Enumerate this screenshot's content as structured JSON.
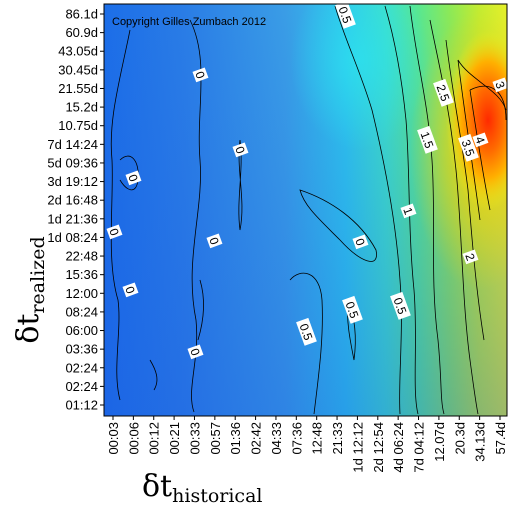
{
  "chart_data": {
    "type": "heatmap",
    "title": "",
    "copyright": "Copyright Gilles Zumbach 2012",
    "xlabel": {
      "main": "δt",
      "sub": "historical"
    },
    "ylabel": {
      "main": "δt",
      "sub": "realized"
    },
    "x_ticks": [
      "00:03",
      "00:06",
      "00:12",
      "00:21",
      "00:33",
      "00:57",
      "01:36",
      "02:42",
      "04:33",
      "07:36",
      "12:48",
      "21:33",
      "1d 12:12",
      "2d 12:54",
      "4d 06:24",
      "7d 04:12",
      "12.07d",
      "20.3d",
      "34.13d",
      "57.4d"
    ],
    "y_ticks": [
      "86.1d",
      "60.9d",
      "43.05d",
      "30.45d",
      "21.55d",
      "15.2d",
      "10.75d",
      "7d 14:24",
      "5d 09:36",
      "3d 19:12",
      "2d 16:48",
      "1d 21:36",
      "1d 08:24",
      "22:48",
      "15:36",
      "12:00",
      "08:24",
      "06:00",
      "03:36",
      "02:24",
      "02:24",
      "01:12"
    ],
    "contour_labels": [
      "0",
      "0",
      "0",
      "0",
      "0",
      "0",
      "0",
      "0",
      "0.5",
      "0.5",
      "0.5",
      "0.5",
      "1",
      "1.5",
      "2",
      "2.5",
      "3",
      "3.5",
      "4"
    ],
    "grid": false,
    "legend": "none"
  }
}
